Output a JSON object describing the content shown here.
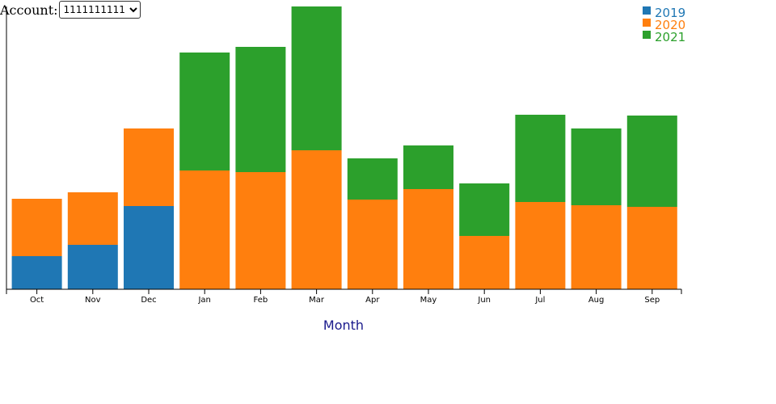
{
  "account": {
    "label": "Account:",
    "selected": "1111111111",
    "options": [
      "1111111111"
    ]
  },
  "chart_data": {
    "type": "bar",
    "stacked": true,
    "xlabel": "Month",
    "ylabel": "",
    "ylim": [
      0,
      350
    ],
    "categories": [
      "Oct",
      "Nov",
      "Dec",
      "Jan",
      "Feb",
      "Mar",
      "Apr",
      "May",
      "Jun",
      "Jul",
      "Aug",
      "Sep"
    ],
    "series": [
      {
        "name": "2019",
        "color": "#1f77b4",
        "values": [
          41,
          55,
          103,
          0,
          0,
          0,
          0,
          0,
          0,
          0,
          0,
          0
        ]
      },
      {
        "name": "2020",
        "color": "#ff7f0e",
        "values": [
          71,
          65,
          96,
          147,
          145,
          172,
          111,
          124,
          66,
          108,
          104,
          102
        ]
      },
      {
        "name": "2021",
        "color": "#2ca02c",
        "values": [
          0,
          0,
          0,
          146,
          155,
          178,
          51,
          54,
          65,
          108,
          95,
          113
        ]
      }
    ],
    "legend": "top-right",
    "grid": false
  }
}
